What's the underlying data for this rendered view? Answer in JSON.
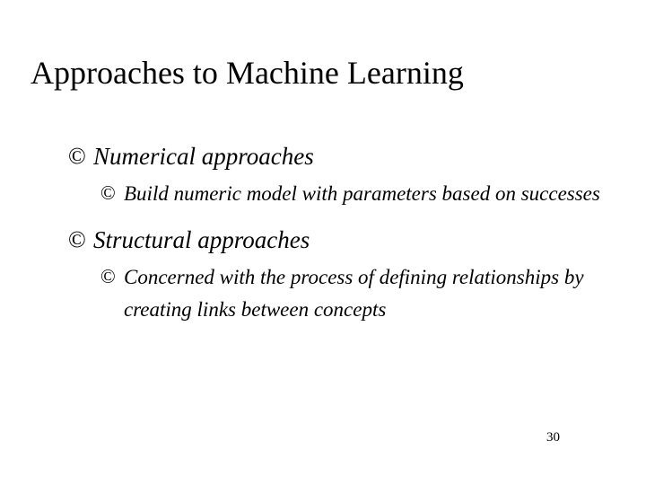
{
  "slide": {
    "title": "Approaches to Machine Learning",
    "page_number": "30",
    "bullet_char_l1": "©",
    "bullet_char_l2": "©",
    "items": [
      {
        "label": "Numerical approaches",
        "children": [
          {
            "label": "Build numeric model with parameters based on successes"
          }
        ]
      },
      {
        "label": "Structural approaches",
        "children": [
          {
            "label": "Concerned with the process of defining relationships by creating links between concepts"
          }
        ]
      }
    ]
  },
  "style": {
    "background_color": "#ffffff",
    "text_color": "#000000",
    "font_family": "Times New Roman",
    "title_fontsize_pt": 27,
    "l1_fontsize_pt": 20,
    "l2_fontsize_pt": 17,
    "pagenum_fontsize_pt": 11,
    "italic_body": true
  }
}
